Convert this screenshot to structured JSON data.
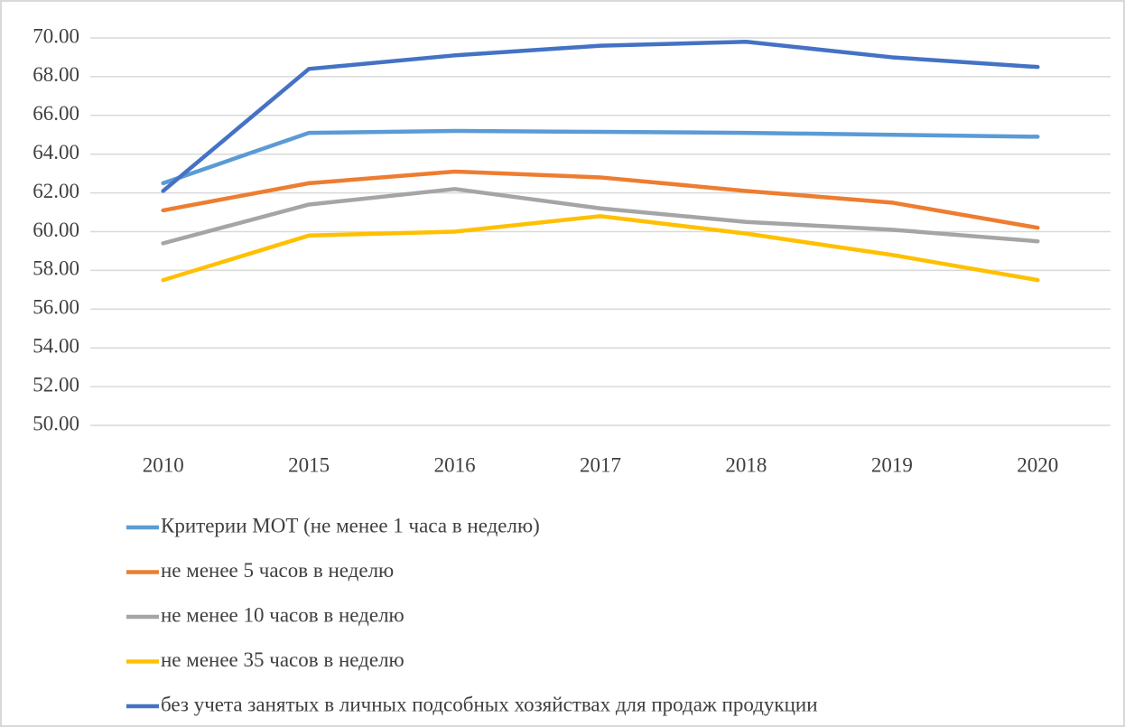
{
  "chart_data": {
    "type": "line",
    "categories": [
      "2010",
      "2015",
      "2016",
      "2017",
      "2018",
      "2019",
      "2020"
    ],
    "series": [
      {
        "name": "Критерии МОТ (не менее 1 часа в неделю)",
        "color": "#5b9bd5",
        "values": [
          62.5,
          65.1,
          65.2,
          65.15,
          65.1,
          65.0,
          64.9
        ]
      },
      {
        "name": "не менее 5 часов в неделю",
        "color": "#ed7d31",
        "values": [
          61.1,
          62.5,
          63.1,
          62.8,
          62.1,
          61.5,
          60.2
        ]
      },
      {
        "name": "не менее 10 часов в неделю",
        "color": "#a5a5a5",
        "values": [
          59.4,
          61.4,
          62.2,
          61.2,
          60.5,
          60.1,
          59.5
        ]
      },
      {
        "name": "не менее 35 часов в неделю",
        "color": "#ffc000",
        "values": [
          57.5,
          59.8,
          60.0,
          60.8,
          59.9,
          58.8,
          57.5
        ]
      },
      {
        "name": "без учета занятых в личных подсобных хозяйствах для продаж продукции",
        "color": "#4472c4",
        "values": [
          62.1,
          68.4,
          69.1,
          69.6,
          69.8,
          69.0,
          68.5
        ]
      }
    ],
    "ylim": [
      50,
      70
    ],
    "yticks": [
      {
        "value": 50,
        "label": "50.00"
      },
      {
        "value": 52,
        "label": "52.00"
      },
      {
        "value": 54,
        "label": "54.00"
      },
      {
        "value": 56,
        "label": "56.00"
      },
      {
        "value": 58,
        "label": "58.00"
      },
      {
        "value": 60,
        "label": "60.00"
      },
      {
        "value": 62,
        "label": "62.00"
      },
      {
        "value": 64,
        "label": "64.00"
      },
      {
        "value": 66,
        "label": "66.00"
      },
      {
        "value": 68,
        "label": "68.00"
      },
      {
        "value": 70,
        "label": "70.00"
      }
    ],
    "grid": true,
    "legend": "bottom"
  }
}
